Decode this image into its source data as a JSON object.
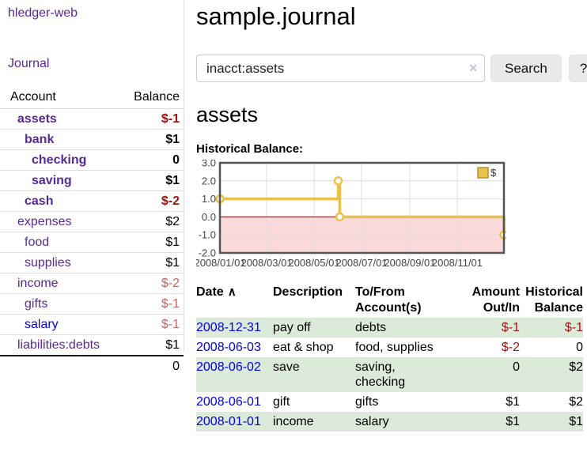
{
  "colors": {
    "link_purple": "#572996",
    "link_blue": "#0000e6",
    "neg_dark": "#a01414",
    "neg_light": "#c06868",
    "row_green": "#dcead9"
  },
  "sidebar": {
    "app_title": "hledger-web",
    "journal_link": "Journal",
    "accounts_table": {
      "account_header": "Account",
      "balance_header": "Balance",
      "rows": [
        {
          "name": "assets",
          "balance": "$-1",
          "indent": 1,
          "bold": true,
          "neg": "dark"
        },
        {
          "name": "bank",
          "balance": "$1",
          "indent": 2,
          "bold": true
        },
        {
          "name": "checking",
          "balance": "0",
          "indent": 3,
          "bold": true
        },
        {
          "name": "saving",
          "balance": "$1",
          "indent": 3,
          "bold": true
        },
        {
          "name": "cash",
          "balance": "$-2",
          "indent": 2,
          "bold": true,
          "neg": "dark"
        },
        {
          "name": "expenses",
          "balance": "$2",
          "indent": 1
        },
        {
          "name": "food",
          "balance": "$1",
          "indent": 2
        },
        {
          "name": "supplies",
          "balance": "$1",
          "indent": 2
        },
        {
          "name": "income",
          "balance": "$-2",
          "indent": 1,
          "neg": "light"
        },
        {
          "name": "gifts",
          "balance": "$-1",
          "indent": 2,
          "neg": "light"
        },
        {
          "name": "salary",
          "balance": "$-1",
          "indent": 2,
          "neg": "light",
          "link": "blue"
        },
        {
          "name": "liabilities:debts",
          "balance": "$1",
          "indent": 1
        }
      ],
      "total": "0"
    }
  },
  "main": {
    "title": "sample.journal",
    "search": {
      "value": "inacct:assets",
      "clear_icon": "✕",
      "search_button": "Search",
      "help_button": "?"
    },
    "account_heading": "assets",
    "chart_heading": "Historical Balance:"
  },
  "chart_data": {
    "type": "line",
    "step": true,
    "title": "Historical Balance",
    "xlim": [
      "2008-01-01",
      "2008-12-31"
    ],
    "ylim": [
      -2,
      3
    ],
    "x_ticks": [
      "2008/01/01",
      "2008/03/01",
      "2008/05/01",
      "2008/07/01",
      "2008/09/01",
      "2008/11/01"
    ],
    "y_ticks": [
      "3.0",
      "2.0",
      "1.0",
      "0.0",
      "-1.0",
      "-2.0"
    ],
    "series": [
      {
        "name": "$",
        "color": "#e9c24d",
        "points": [
          [
            "2008-01-01",
            1
          ],
          [
            "2008-06-01",
            2
          ],
          [
            "2008-06-03",
            0
          ],
          [
            "2008-12-31",
            -1
          ]
        ]
      }
    ],
    "grid": true,
    "legend_position": "top-right",
    "negative_region_color": "#f9d9da",
    "zero_line_color": "#7c0a0a",
    "border_color": "#545454",
    "grid_color": "#dddddd",
    "axis_label_color": "#444444",
    "legend_swatch_stroke": "#b8922a"
  },
  "register": {
    "sort_icon": "∧",
    "headers": [
      {
        "label": "Date"
      },
      {
        "label": "Description"
      },
      {
        "label": "To/From Account(s)"
      },
      {
        "label": "Amount Out/In"
      },
      {
        "label": "Historical Balance"
      }
    ],
    "rows": [
      {
        "date": "2008-12-31",
        "description": "pay off",
        "accounts": "debts",
        "amount": "$-1",
        "balance": "$-1",
        "amount_negative": true,
        "balance_negative": true,
        "shaded": true
      },
      {
        "date": "2008-06-03",
        "description": "eat & shop",
        "accounts": "food, supplies",
        "amount": "$-2",
        "balance": "0",
        "amount_negative": true,
        "balance_negative": false,
        "shaded": false
      },
      {
        "date": "2008-06-02",
        "description": "save",
        "accounts": "saving, checking",
        "amount": "0",
        "balance": "$2",
        "amount_negative": false,
        "balance_negative": false,
        "shaded": true
      },
      {
        "date": "2008-06-01",
        "description": "gift",
        "accounts": "gifts",
        "amount": "$1",
        "balance": "$2",
        "amount_negative": false,
        "balance_negative": false,
        "shaded": false
      },
      {
        "date": "2008-01-01",
        "description": "income",
        "accounts": "salary",
        "amount": "$1",
        "balance": "$1",
        "amount_negative": false,
        "balance_negative": false,
        "shaded": true
      }
    ]
  }
}
